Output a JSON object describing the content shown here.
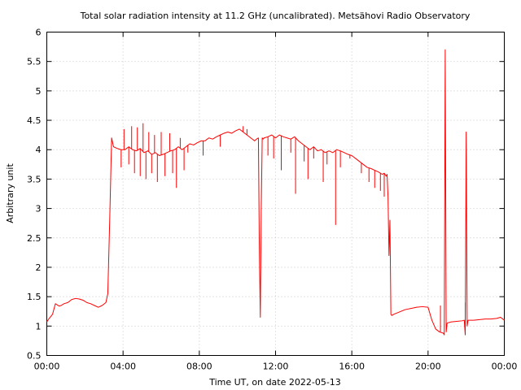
{
  "chart_data": {
    "type": "line",
    "title": "Total solar radiation intensity at 11.2 GHz (uncalibrated). Metsähovi Radio Observatory",
    "xlabel": "Time UT, on date 2022-05-13",
    "ylabel": "Arbitrary unit",
    "x_unit": "hours UT",
    "xlim": [
      0,
      24
    ],
    "ylim": [
      0.5,
      6
    ],
    "x_ticks": [
      0,
      4,
      8,
      12,
      16,
      20,
      24
    ],
    "x_tick_labels": [
      "00:00",
      "04:00",
      "08:00",
      "12:00",
      "16:00",
      "20:00",
      "00:00"
    ],
    "y_ticks": [
      0.5,
      1,
      1.5,
      2,
      2.5,
      3,
      3.5,
      4,
      4.5,
      5,
      5.5,
      6
    ],
    "y_tick_labels": [
      "0.5",
      "1",
      "1.5",
      "2",
      "2.5",
      "3",
      "3.5",
      "4",
      "4.5",
      "5",
      "5.5",
      "6"
    ],
    "grid": true,
    "line_color": "#ff0000",
    "series": [
      {
        "x": [
          0,
          0.1,
          0.3,
          0.45,
          0.55,
          0.65,
          0.75,
          0.9,
          1.1,
          1.3,
          1.5,
          1.7,
          1.9,
          2.1,
          2.3,
          2.5,
          2.7,
          2.9,
          3.1,
          3.2,
          3.3,
          3.35,
          3.4,
          3.5,
          3.7,
          3.9,
          4.1,
          4.3,
          4.5,
          4.7,
          4.9,
          5.1,
          5.3,
          5.5,
          5.7,
          5.9,
          6.1,
          6.3,
          6.5,
          6.7,
          6.9,
          7.1,
          7.3,
          7.5,
          7.7,
          7.9,
          8.1,
          8.3,
          8.5,
          8.7,
          8.9,
          9.1,
          9.3,
          9.5,
          9.7,
          9.9,
          10.1,
          10.3,
          10.5,
          10.7,
          10.9,
          11.0,
          11.1,
          11.15,
          11.2,
          11.25,
          11.3,
          11.35,
          11.4,
          11.6,
          11.8,
          12.0,
          12.2,
          12.4,
          12.6,
          12.8,
          13.0,
          13.2,
          13.4,
          13.6,
          13.8,
          14.0,
          14.2,
          14.4,
          14.6,
          14.8,
          15.0,
          15.2,
          15.4,
          15.6,
          15.8,
          16.0,
          16.2,
          16.4,
          16.6,
          16.8,
          17.0,
          17.2,
          17.4,
          17.6,
          17.7,
          17.8,
          17.85,
          17.9,
          17.95,
          18.0,
          18.05,
          18.1,
          18.2,
          18.5,
          18.8,
          19.1,
          19.4,
          19.7,
          20.0,
          20.2,
          20.4,
          20.6,
          20.8,
          20.85,
          20.9,
          20.95,
          21.0,
          21.2,
          21.5,
          21.8,
          21.9,
          21.95,
          22.0,
          22.05,
          22.1,
          22.4,
          22.7,
          23.0,
          23.3,
          23.6,
          23.8,
          24.0
        ],
        "y": [
          1.07,
          1.12,
          1.2,
          1.38,
          1.36,
          1.34,
          1.35,
          1.38,
          1.4,
          1.45,
          1.47,
          1.46,
          1.44,
          1.4,
          1.38,
          1.35,
          1.32,
          1.35,
          1.4,
          1.55,
          2.8,
          3.5,
          4.2,
          4.05,
          4.02,
          4.0,
          4.0,
          4.05,
          4.0,
          3.98,
          4.02,
          3.95,
          3.98,
          3.92,
          3.95,
          3.9,
          3.92,
          3.95,
          3.98,
          4.0,
          4.05,
          4.0,
          4.05,
          4.1,
          4.08,
          4.12,
          4.15,
          4.15,
          4.2,
          4.18,
          4.22,
          4.25,
          4.28,
          4.3,
          4.28,
          4.32,
          4.35,
          4.3,
          4.25,
          4.2,
          4.15,
          4.18,
          4.2,
          2.3,
          1.15,
          3.0,
          4.2,
          4.18,
          4.2,
          4.22,
          4.25,
          4.2,
          4.25,
          4.22,
          4.2,
          4.18,
          4.22,
          4.15,
          4.1,
          4.05,
          4.0,
          4.05,
          3.98,
          4.0,
          3.95,
          3.98,
          3.95,
          4.0,
          3.98,
          3.95,
          3.92,
          3.9,
          3.85,
          3.8,
          3.75,
          3.7,
          3.68,
          3.65,
          3.62,
          3.58,
          3.6,
          3.55,
          3.58,
          3.2,
          2.2,
          2.8,
          1.2,
          1.18,
          1.2,
          1.24,
          1.28,
          1.3,
          1.32,
          1.33,
          1.32,
          1.1,
          0.95,
          0.9,
          0.88,
          0.85,
          5.7,
          0.9,
          1.05,
          1.07,
          1.08,
          1.09,
          1.1,
          0.85,
          4.3,
          1.0,
          1.1,
          1.1,
          1.11,
          1.12,
          1.12,
          1.13,
          1.15,
          1.1
        ]
      }
    ],
    "spikes": [
      {
        "x": 3.9,
        "y": 3.7
      },
      {
        "x": 4.05,
        "y": 4.35
      },
      {
        "x": 4.3,
        "y": 3.75
      },
      {
        "x": 4.45,
        "y": 4.4
      },
      {
        "x": 4.6,
        "y": 3.6
      },
      {
        "x": 4.75,
        "y": 4.38
      },
      {
        "x": 4.9,
        "y": 3.55
      },
      {
        "x": 5.05,
        "y": 4.45
      },
      {
        "x": 5.2,
        "y": 3.5
      },
      {
        "x": 5.35,
        "y": 4.3
      },
      {
        "x": 5.5,
        "y": 3.6
      },
      {
        "x": 5.65,
        "y": 4.25
      },
      {
        "x": 5.8,
        "y": 3.45
      },
      {
        "x": 6.0,
        "y": 4.3
      },
      {
        "x": 6.2,
        "y": 3.55
      },
      {
        "x": 6.45,
        "y": 4.28
      },
      {
        "x": 6.6,
        "y": 3.6
      },
      {
        "x": 6.8,
        "y": 3.35
      },
      {
        "x": 7.0,
        "y": 4.2
      },
      {
        "x": 7.2,
        "y": 3.65
      },
      {
        "x": 7.4,
        "y": 3.95
      },
      {
        "x": 8.2,
        "y": 3.9
      },
      {
        "x": 9.1,
        "y": 4.05
      },
      {
        "x": 10.3,
        "y": 4.4
      },
      {
        "x": 10.5,
        "y": 4.35
      },
      {
        "x": 11.6,
        "y": 3.9
      },
      {
        "x": 11.9,
        "y": 3.85
      },
      {
        "x": 12.3,
        "y": 3.65
      },
      {
        "x": 12.8,
        "y": 3.95
      },
      {
        "x": 13.05,
        "y": 3.25
      },
      {
        "x": 13.5,
        "y": 3.8
      },
      {
        "x": 13.7,
        "y": 3.5
      },
      {
        "x": 14.0,
        "y": 3.85
      },
      {
        "x": 14.5,
        "y": 3.45
      },
      {
        "x": 14.7,
        "y": 3.75
      },
      {
        "x": 15.15,
        "y": 2.72
      },
      {
        "x": 15.4,
        "y": 3.7
      },
      {
        "x": 15.9,
        "y": 3.85
      },
      {
        "x": 16.5,
        "y": 3.6
      },
      {
        "x": 16.9,
        "y": 3.45
      },
      {
        "x": 17.2,
        "y": 3.35
      },
      {
        "x": 17.5,
        "y": 3.3
      },
      {
        "x": 17.7,
        "y": 3.2
      },
      {
        "x": 21.95,
        "y": 1.4
      },
      {
        "x": 20.65,
        "y": 1.35
      }
    ]
  }
}
